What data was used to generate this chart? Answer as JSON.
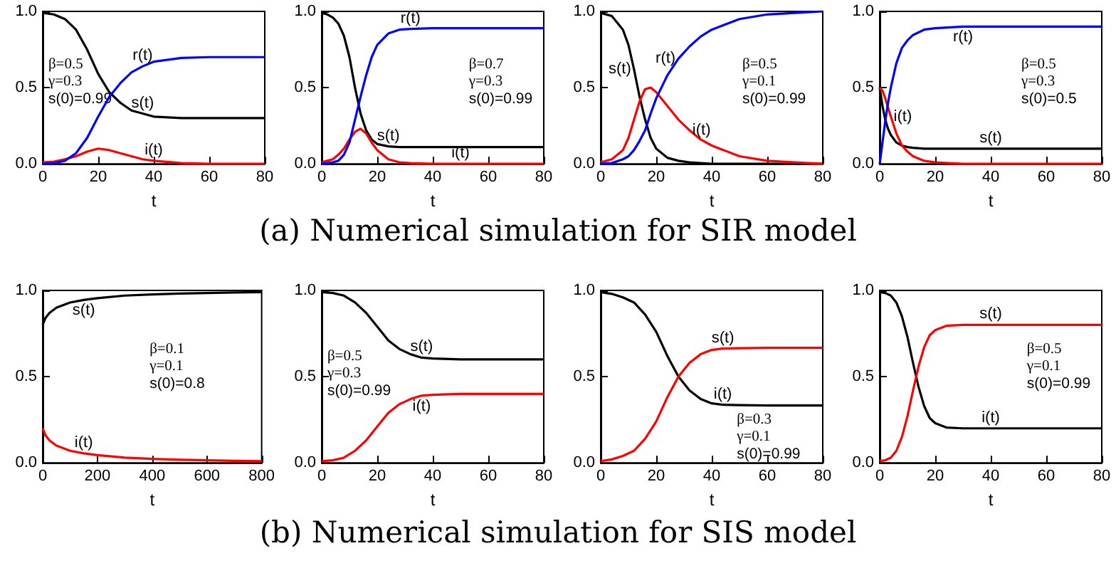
{
  "chart_data": [
    {
      "type": "line",
      "title": "(a) Numerical simulation for SIR model",
      "xlabel": "t",
      "xlim": [
        0,
        80
      ],
      "ylim": [
        0,
        1
      ],
      "xticks": [
        0,
        20,
        40,
        60,
        80
      ],
      "yticks": [
        {
          "value": 0,
          "label": "0.0"
        },
        {
          "value": 0.5,
          "label": "0.5"
        },
        {
          "value": 1,
          "label": "1.0"
        }
      ],
      "annotations": [
        "β=0.5",
        "γ=0.3",
        "s(0)=0.99"
      ],
      "x": [
        0,
        4,
        8,
        12,
        16,
        20,
        24,
        28,
        32,
        36,
        40,
        50,
        60,
        70,
        80
      ],
      "series": [
        {
          "name": "s(t)",
          "color": "#000000",
          "values": [
            0.99,
            0.98,
            0.95,
            0.88,
            0.75,
            0.59,
            0.47,
            0.4,
            0.35,
            0.33,
            0.31,
            0.3,
            0.3,
            0.3,
            0.3
          ]
        },
        {
          "name": "i(t)",
          "color": "#ff0000",
          "values": [
            0.01,
            0.015,
            0.03,
            0.05,
            0.08,
            0.1,
            0.09,
            0.07,
            0.05,
            0.03,
            0.02,
            0.005,
            0,
            0,
            0
          ]
        },
        {
          "name": "r(t)",
          "color": "#0000ff",
          "values": [
            0,
            0.005,
            0.02,
            0.07,
            0.17,
            0.31,
            0.44,
            0.53,
            0.6,
            0.64,
            0.67,
            0.695,
            0.7,
            0.7,
            0.7
          ]
        }
      ]
    },
    {
      "type": "line",
      "xlabel": "t",
      "xlim": [
        0,
        80
      ],
      "ylim": [
        0,
        1
      ],
      "xticks": [
        0,
        20,
        40,
        60,
        80
      ],
      "yticks": [
        {
          "value": 0,
          "label": "0.0"
        },
        {
          "value": 0.5,
          "label": "0.5"
        },
        {
          "value": 1,
          "label": "1.0"
        }
      ],
      "annotations": [
        "β=0.7",
        "γ=0.3",
        "s(0)=0.99"
      ],
      "x": [
        0,
        2,
        4,
        6,
        8,
        10,
        12,
        14,
        16,
        18,
        20,
        24,
        28,
        32,
        40,
        50,
        60,
        80
      ],
      "series": [
        {
          "name": "s(t)",
          "color": "#000000",
          "values": [
            0.99,
            0.98,
            0.96,
            0.92,
            0.84,
            0.7,
            0.5,
            0.33,
            0.22,
            0.16,
            0.13,
            0.115,
            0.11,
            0.11,
            0.11,
            0.11,
            0.11,
            0.11
          ]
        },
        {
          "name": "i(t)",
          "color": "#ff0000",
          "values": [
            0.01,
            0.02,
            0.03,
            0.06,
            0.1,
            0.16,
            0.21,
            0.23,
            0.2,
            0.14,
            0.09,
            0.03,
            0.01,
            0.005,
            0,
            0,
            0,
            0
          ]
        },
        {
          "name": "r(t)",
          "color": "#0000ff",
          "values": [
            0,
            0.005,
            0.01,
            0.02,
            0.06,
            0.14,
            0.29,
            0.44,
            0.58,
            0.7,
            0.78,
            0.855,
            0.88,
            0.885,
            0.89,
            0.89,
            0.89,
            0.89
          ]
        }
      ]
    },
    {
      "type": "line",
      "xlabel": "t",
      "xlim": [
        0,
        80
      ],
      "ylim": [
        0,
        1
      ],
      "xticks": [
        0,
        20,
        40,
        60,
        80
      ],
      "yticks": [
        {
          "value": 0,
          "label": "0.0"
        },
        {
          "value": 0.5,
          "label": "0.5"
        },
        {
          "value": 1,
          "label": "1.0"
        }
      ],
      "annotations": [
        "β=0.5",
        "γ=0.1",
        "s(0)=0.99"
      ],
      "x": [
        0,
        4,
        8,
        10,
        12,
        14,
        16,
        18,
        20,
        24,
        28,
        32,
        36,
        40,
        50,
        60,
        70,
        80
      ],
      "series": [
        {
          "name": "s(t)",
          "color": "#000000",
          "values": [
            0.99,
            0.97,
            0.88,
            0.78,
            0.62,
            0.44,
            0.29,
            0.17,
            0.1,
            0.04,
            0.02,
            0.01,
            0.005,
            0,
            0,
            0,
            0,
            0
          ]
        },
        {
          "name": "i(t)",
          "color": "#ff0000",
          "values": [
            0.01,
            0.03,
            0.09,
            0.17,
            0.29,
            0.41,
            0.49,
            0.5,
            0.47,
            0.38,
            0.29,
            0.22,
            0.16,
            0.12,
            0.05,
            0.02,
            0.01,
            0
          ]
        },
        {
          "name": "r(t)",
          "color": "#0000ff",
          "values": [
            0,
            0.005,
            0.03,
            0.05,
            0.09,
            0.15,
            0.22,
            0.33,
            0.43,
            0.58,
            0.69,
            0.77,
            0.835,
            0.88,
            0.95,
            0.98,
            0.99,
            1.0
          ]
        }
      ]
    },
    {
      "type": "line",
      "xlabel": "t",
      "xlim": [
        0,
        80
      ],
      "ylim": [
        0,
        1
      ],
      "xticks": [
        0,
        20,
        40,
        60,
        80
      ],
      "yticks": [
        {
          "value": 0,
          "label": "0.0"
        },
        {
          "value": 0.5,
          "label": "0.5"
        },
        {
          "value": 1,
          "label": "1.0"
        }
      ],
      "annotations": [
        "β=0.5",
        "γ=0.3",
        "s(0)=0.5"
      ],
      "x": [
        0,
        1,
        2,
        3,
        4,
        6,
        8,
        10,
        12,
        16,
        20,
        30,
        40,
        60,
        80
      ],
      "series": [
        {
          "name": "s(t)",
          "color": "#000000",
          "values": [
            0.5,
            0.38,
            0.29,
            0.23,
            0.19,
            0.14,
            0.12,
            0.11,
            0.105,
            0.1,
            0.1,
            0.1,
            0.1,
            0.1,
            0.1
          ]
        },
        {
          "name": "i(t)",
          "color": "#ff0000",
          "values": [
            0.5,
            0.48,
            0.43,
            0.37,
            0.31,
            0.2,
            0.12,
            0.08,
            0.05,
            0.02,
            0.01,
            0,
            0,
            0,
            0
          ]
        },
        {
          "name": "r(t)",
          "color": "#0000ff",
          "values": [
            0,
            0.14,
            0.28,
            0.4,
            0.5,
            0.66,
            0.76,
            0.81,
            0.845,
            0.88,
            0.89,
            0.9,
            0.9,
            0.9,
            0.9
          ]
        }
      ]
    },
    {
      "type": "line",
      "title": "(b) Numerical simulation for SIS model",
      "xlabel": "t",
      "xlim": [
        0,
        800
      ],
      "ylim": [
        0,
        1
      ],
      "xticks": [
        0,
        200,
        400,
        600,
        800
      ],
      "yticks": [
        {
          "value": 0,
          "label": "0.0"
        },
        {
          "value": 0.5,
          "label": "0.5"
        },
        {
          "value": 1,
          "label": "1.0"
        }
      ],
      "annotations": [
        "β=0.1",
        "γ=0.1",
        "s(0)=0.8"
      ],
      "x": [
        0,
        10,
        25,
        50,
        100,
        150,
        200,
        300,
        400,
        500,
        600,
        700,
        800
      ],
      "series": [
        {
          "name": "s(t)",
          "color": "#000000",
          "values": [
            0.8,
            0.84,
            0.87,
            0.9,
            0.93,
            0.945,
            0.955,
            0.97,
            0.977,
            0.982,
            0.985,
            0.988,
            0.99
          ]
        },
        {
          "name": "i(t)",
          "color": "#ff0000",
          "values": [
            0.2,
            0.16,
            0.13,
            0.1,
            0.07,
            0.055,
            0.045,
            0.03,
            0.023,
            0.018,
            0.015,
            0.012,
            0.01
          ]
        }
      ]
    },
    {
      "type": "line",
      "xlabel": "t",
      "xlim": [
        0,
        80
      ],
      "ylim": [
        0,
        1
      ],
      "xticks": [
        0,
        20,
        40,
        60,
        80
      ],
      "yticks": [
        {
          "value": 0,
          "label": "0.0"
        },
        {
          "value": 0.5,
          "label": "0.5"
        },
        {
          "value": 1,
          "label": "1.0"
        }
      ],
      "annotations": [
        "β=0.5",
        "γ=0.3",
        "s(0)=0.99"
      ],
      "x": [
        0,
        4,
        8,
        12,
        16,
        20,
        24,
        28,
        32,
        36,
        40,
        50,
        60,
        70,
        80
      ],
      "series": [
        {
          "name": "s(t)",
          "color": "#000000",
          "values": [
            0.99,
            0.985,
            0.97,
            0.93,
            0.87,
            0.79,
            0.71,
            0.66,
            0.63,
            0.61,
            0.605,
            0.6,
            0.6,
            0.6,
            0.6
          ]
        },
        {
          "name": "i(t)",
          "color": "#ff0000",
          "values": [
            0.01,
            0.015,
            0.03,
            0.07,
            0.13,
            0.21,
            0.29,
            0.34,
            0.37,
            0.39,
            0.395,
            0.4,
            0.4,
            0.4,
            0.4
          ]
        }
      ]
    },
    {
      "type": "line",
      "xlabel": "t",
      "xlim": [
        0,
        80
      ],
      "ylim": [
        0,
        1
      ],
      "xticks": [
        0,
        20,
        40,
        60,
        80
      ],
      "yticks": [
        {
          "value": 0,
          "label": "0.0"
        },
        {
          "value": 0.5,
          "label": "0.5"
        },
        {
          "value": 1,
          "label": "1.0"
        }
      ],
      "annotations": [
        "β=0.3",
        "γ=0.1",
        "s(0)=0.99"
      ],
      "x": [
        0,
        4,
        8,
        12,
        16,
        20,
        24,
        28,
        32,
        36,
        40,
        44,
        50,
        60,
        70,
        80
      ],
      "series": [
        {
          "name": "i(t)",
          "color": "#000000",
          "values": [
            0.99,
            0.98,
            0.96,
            0.93,
            0.86,
            0.76,
            0.62,
            0.5,
            0.42,
            0.37,
            0.345,
            0.337,
            0.335,
            0.333,
            0.333,
            0.333
          ]
        },
        {
          "name": "s(t)",
          "color": "#ff0000",
          "values": [
            0.01,
            0.02,
            0.04,
            0.07,
            0.14,
            0.24,
            0.38,
            0.5,
            0.58,
            0.63,
            0.655,
            0.663,
            0.665,
            0.667,
            0.667,
            0.667
          ]
        }
      ]
    },
    {
      "type": "line",
      "xlabel": "t",
      "xlim": [
        0,
        80
      ],
      "ylim": [
        0,
        1
      ],
      "xticks": [
        0,
        20,
        40,
        60,
        80
      ],
      "yticks": [
        {
          "value": 0,
          "label": "0.0"
        },
        {
          "value": 0.5,
          "label": "0.5"
        },
        {
          "value": 1,
          "label": "1.0"
        }
      ],
      "annotations": [
        "β=0.5",
        "γ=0.1",
        "s(0)=0.99"
      ],
      "x": [
        0,
        2,
        4,
        6,
        8,
        10,
        12,
        14,
        16,
        18,
        20,
        24,
        30,
        40,
        60,
        80
      ],
      "series": [
        {
          "name": "i(t)",
          "color": "#000000",
          "values": [
            0.99,
            0.985,
            0.97,
            0.93,
            0.85,
            0.73,
            0.58,
            0.44,
            0.33,
            0.26,
            0.23,
            0.205,
            0.2,
            0.2,
            0.2,
            0.2
          ]
        },
        {
          "name": "s(t)",
          "color": "#ff0000",
          "values": [
            0.01,
            0.015,
            0.03,
            0.07,
            0.15,
            0.27,
            0.42,
            0.56,
            0.67,
            0.74,
            0.77,
            0.795,
            0.8,
            0.8,
            0.8,
            0.8
          ]
        }
      ]
    }
  ]
}
